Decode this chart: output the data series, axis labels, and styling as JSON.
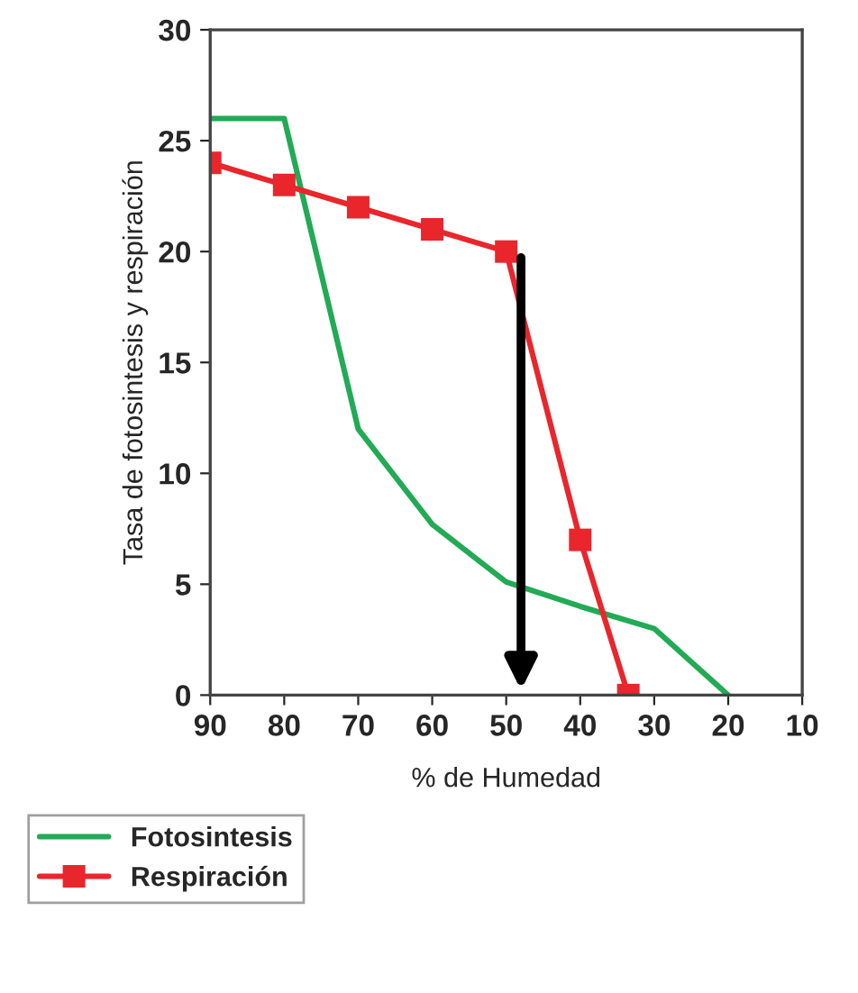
{
  "chart_data": {
    "type": "line",
    "xlabel": "% de Humedad",
    "ylabel": "Tasa de fotosintesis y respiración",
    "xlim": [
      90,
      10
    ],
    "xticks": [
      90,
      80,
      70,
      60,
      50,
      40,
      30,
      20,
      10
    ],
    "ylim": [
      0,
      30
    ],
    "yticks": [
      0,
      5,
      10,
      15,
      20,
      25,
      30
    ],
    "series": [
      {
        "name": "Fotosintesis",
        "color": "#22aa55",
        "x": [
          90,
          80,
          70,
          60,
          50,
          40,
          30,
          20
        ],
        "values": [
          26,
          26,
          12,
          7.7,
          5.1,
          4,
          3,
          0
        ],
        "marker": "none"
      },
      {
        "name": "Respiración",
        "color": "#e8262c",
        "x": [
          90,
          80,
          70,
          60,
          50,
          40,
          33.5
        ],
        "values": [
          24,
          23,
          22,
          21,
          20,
          7,
          0
        ],
        "marker": "square"
      }
    ],
    "grid": false,
    "legend": "bottom left"
  }
}
